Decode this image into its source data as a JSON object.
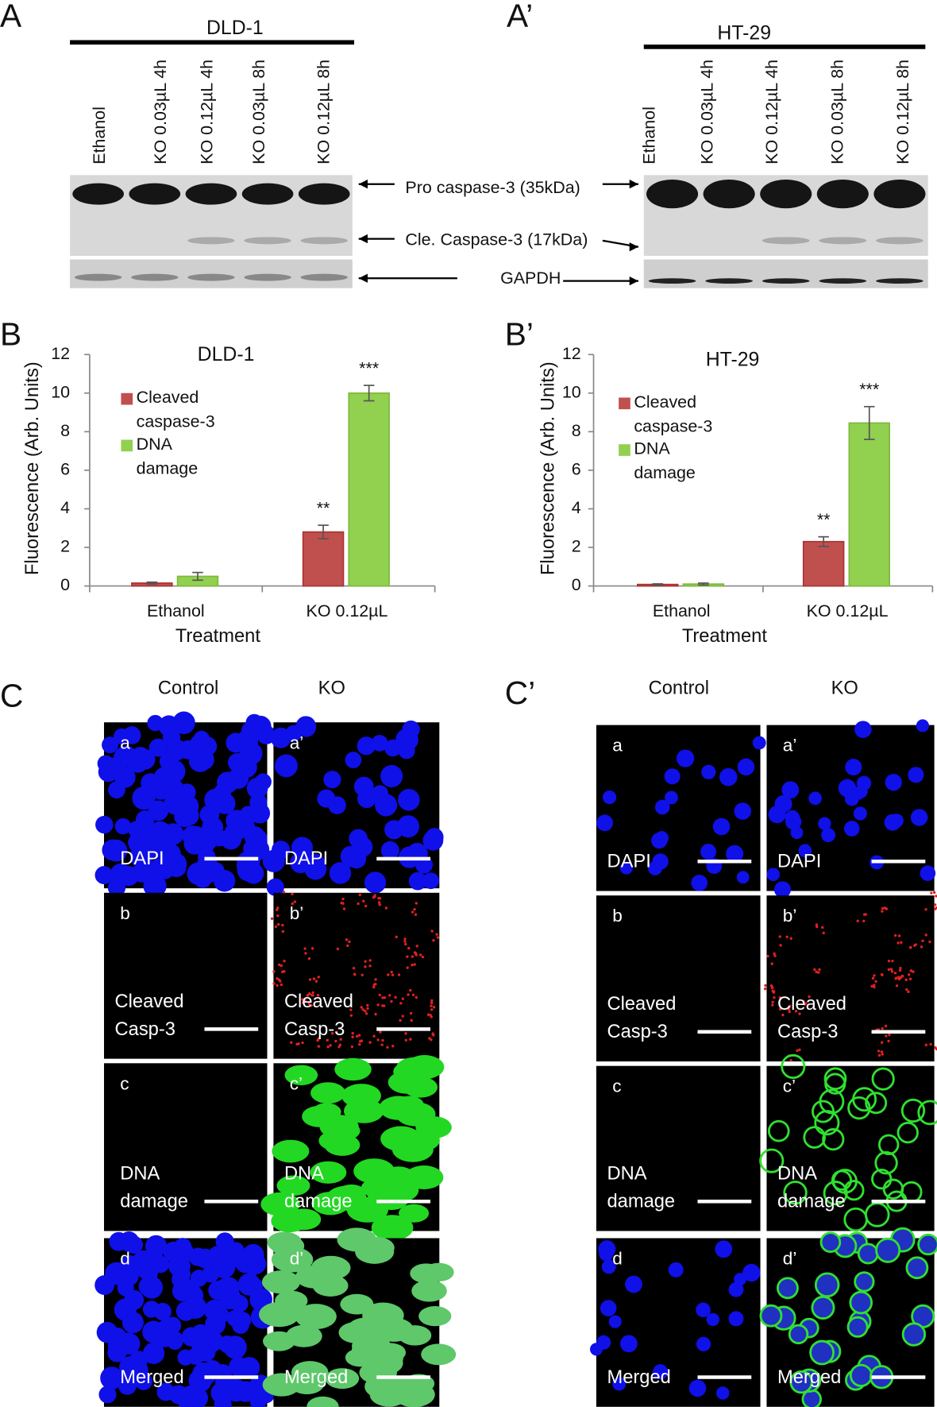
{
  "blots": [
    {
      "panel": "A",
      "cell_line": "DLD-1",
      "lanes": [
        "Ethanol",
        "KO 0.03µL 4h",
        "KO 0.12µL 4h",
        "KO 0.03µL 8h",
        "KO 0.12µL 8h"
      ]
    },
    {
      "panel": "A’",
      "cell_line": "HT-29",
      "lanes": [
        "Ethanol",
        "KO 0.03µL 4h",
        "KO 0.12µL 4h",
        "KO 0.03µL 8h",
        "KO 0.12µL 8h"
      ]
    }
  ],
  "blot_bands": [
    "Pro caspase-3 (35kDa)",
    "Cle. Caspase-3 (17kDa)",
    "GAPDH"
  ],
  "chart_data": [
    {
      "type": "bar",
      "panel": "B",
      "title": "DLD-1",
      "xlabel": "Treatment",
      "ylabel": "Fluorescence (Arb. Units)",
      "categories": [
        "Ethanol",
        "KO 0.12µL"
      ],
      "series": [
        {
          "name": "Cleaved caspase-3",
          "color": "#c0504d",
          "values": [
            0.15,
            2.8
          ],
          "errors": [
            0.05,
            0.35
          ],
          "significance": [
            null,
            "**"
          ]
        },
        {
          "name": "DNA damage",
          "color": "#92d050",
          "values": [
            0.5,
            10.0
          ],
          "errors": [
            0.2,
            0.4
          ],
          "significance": [
            null,
            "***"
          ]
        }
      ],
      "ylim": [
        0,
        12
      ],
      "yticks": [
        0,
        2,
        4,
        6,
        8,
        10,
        12
      ],
      "grid": false,
      "legend": "upper left"
    },
    {
      "type": "bar",
      "panel": "B’",
      "title": "HT-29",
      "xlabel": "Treatment",
      "ylabel": "Fluorescence (Arb. Units)",
      "categories": [
        "Ethanol",
        "KO 0.12µL"
      ],
      "series": [
        {
          "name": "Cleaved caspase-3",
          "color": "#c0504d",
          "values": [
            0.08,
            2.3
          ],
          "errors": [
            0.03,
            0.25
          ],
          "significance": [
            null,
            "**"
          ]
        },
        {
          "name": "DNA damage",
          "color": "#92d050",
          "values": [
            0.1,
            8.45
          ],
          "errors": [
            0.05,
            0.85
          ],
          "significance": [
            null,
            "***"
          ]
        }
      ],
      "ylim": [
        0,
        12
      ],
      "yticks": [
        0,
        2,
        4,
        6,
        8,
        10,
        12
      ],
      "grid": false,
      "legend": "upper left"
    }
  ],
  "micrographs": [
    {
      "panel": "C",
      "columns": [
        "Control",
        "KO"
      ],
      "rows": [
        {
          "cells": [
            "a",
            "a’"
          ],
          "stain": [
            "DAPI"
          ]
        },
        {
          "cells": [
            "b",
            "b’"
          ],
          "stain": [
            "Cleaved",
            "Casp-3"
          ]
        },
        {
          "cells": [
            "c",
            "c’"
          ],
          "stain": [
            "DNA",
            "damage"
          ]
        },
        {
          "cells": [
            "d",
            "d’"
          ],
          "stain": [
            "Merged"
          ]
        }
      ]
    },
    {
      "panel": "C’",
      "columns": [
        "Control",
        "KO"
      ],
      "rows": [
        {
          "cells": [
            "a",
            "a’"
          ],
          "stain": [
            "DAPI"
          ]
        },
        {
          "cells": [
            "b",
            "b’"
          ],
          "stain": [
            "Cleaved",
            "Casp-3"
          ]
        },
        {
          "cells": [
            "c",
            "c’"
          ],
          "stain": [
            "DNA",
            "damage"
          ]
        },
        {
          "cells": [
            "d",
            "d’"
          ],
          "stain": [
            "Merged"
          ]
        }
      ]
    }
  ]
}
